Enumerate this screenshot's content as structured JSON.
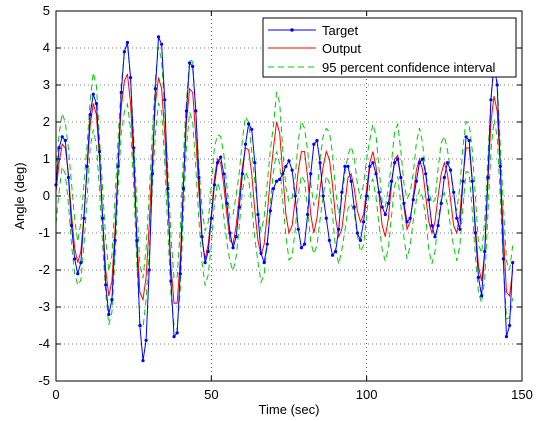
{
  "chart_data": {
    "type": "line",
    "title": "",
    "xlabel": "Time (sec)",
    "ylabel": "Angle (deg)",
    "xlim": [
      0,
      150
    ],
    "ylim": [
      -5,
      5
    ],
    "xticks": [
      0,
      50,
      100,
      150
    ],
    "yticks": [
      -5,
      -4,
      -3,
      -2,
      -1,
      0,
      1,
      2,
      3,
      4,
      5
    ],
    "grid": true,
    "legend_position": "top-right",
    "series": [
      {
        "name": "Target",
        "color": "#0000ff",
        "style": "solid-with-dots",
        "points": [
          [
            0,
            0.3
          ],
          [
            1,
            1.3
          ],
          [
            2,
            1.6
          ],
          [
            3,
            1.5
          ],
          [
            4,
            0.5
          ],
          [
            5,
            -0.8
          ],
          [
            6,
            -1.7
          ],
          [
            7,
            -2.1
          ],
          [
            8,
            -1.8
          ],
          [
            9,
            -0.6
          ],
          [
            10,
            0.8
          ],
          [
            11,
            2.2
          ],
          [
            12,
            2.75
          ],
          [
            13,
            2.5
          ],
          [
            14,
            1.2
          ],
          [
            15,
            -0.6
          ],
          [
            16,
            -2.4
          ],
          [
            17,
            -3.2
          ],
          [
            18,
            -2.8
          ],
          [
            19,
            -1.2
          ],
          [
            20,
            0.8
          ],
          [
            21,
            2.8
          ],
          [
            22,
            3.9
          ],
          [
            23,
            4.15
          ],
          [
            24,
            3.2
          ],
          [
            25,
            1.3
          ],
          [
            26,
            -1.2
          ],
          [
            27,
            -3.5
          ],
          [
            28,
            -4.45
          ],
          [
            29,
            -3.9
          ],
          [
            30,
            -2.0
          ],
          [
            31,
            0.6
          ],
          [
            32,
            2.9
          ],
          [
            33,
            4.3
          ],
          [
            34,
            4.1
          ],
          [
            35,
            2.6
          ],
          [
            36,
            0.2
          ],
          [
            37,
            -2.3
          ],
          [
            38,
            -3.8
          ],
          [
            39,
            -3.7
          ],
          [
            40,
            -2.1
          ],
          [
            41,
            0.2
          ],
          [
            42,
            2.3
          ],
          [
            43,
            3.6
          ],
          [
            44,
            3.5
          ],
          [
            45,
            2.3
          ],
          [
            46,
            0.5
          ],
          [
            47,
            -1.1
          ],
          [
            48,
            -1.8
          ],
          [
            49,
            -1.5
          ],
          [
            50,
            -0.6
          ],
          [
            51,
            0.3
          ],
          [
            52,
            0.9
          ],
          [
            53,
            1.05
          ],
          [
            54,
            0.6
          ],
          [
            55,
            -0.2
          ],
          [
            56,
            -1.0
          ],
          [
            57,
            -1.4
          ],
          [
            58,
            -1.1
          ],
          [
            59,
            -0.3
          ],
          [
            60,
            0.6
          ],
          [
            61,
            1.4
          ],
          [
            62,
            1.95
          ],
          [
            63,
            1.8
          ],
          [
            64,
            0.9
          ],
          [
            65,
            -0.5
          ],
          [
            66,
            -1.55
          ],
          [
            67,
            -1.8
          ],
          [
            68,
            -1.3
          ],
          [
            69,
            -0.4
          ],
          [
            70,
            0.2
          ],
          [
            71,
            0.4
          ],
          [
            72,
            0.45
          ],
          [
            73,
            0.6
          ],
          [
            74,
            0.8
          ],
          [
            75,
            0.95
          ],
          [
            76,
            0.7
          ],
          [
            77,
            0.0
          ],
          [
            78,
            -0.9
          ],
          [
            79,
            -1.4
          ],
          [
            80,
            -1.3
          ],
          [
            81,
            -0.5
          ],
          [
            82,
            0.6
          ],
          [
            83,
            1.4
          ],
          [
            84,
            1.5
          ],
          [
            85,
            0.9
          ],
          [
            86,
            0.0
          ],
          [
            87,
            -0.6
          ],
          [
            88,
            -1.2
          ],
          [
            89,
            -1.6
          ],
          [
            90,
            -1.5
          ],
          [
            91,
            -0.9
          ],
          [
            92,
            0.1
          ],
          [
            93,
            0.8
          ],
          [
            94,
            0.8
          ],
          [
            95,
            0.4
          ],
          [
            96,
            -0.3
          ],
          [
            97,
            -1.0
          ],
          [
            98,
            -1.2
          ],
          [
            99,
            -0.7
          ],
          [
            100,
            0.0
          ],
          [
            101,
            0.8
          ],
          [
            102,
            0.9
          ],
          [
            103,
            0.6
          ],
          [
            104,
            0.1
          ],
          [
            105,
            -0.3
          ],
          [
            106,
            -0.5
          ],
          [
            107,
            -0.2
          ],
          [
            108,
            0.4
          ],
          [
            109,
            0.9
          ],
          [
            110,
            1.0
          ],
          [
            111,
            0.5
          ],
          [
            112,
            -0.2
          ],
          [
            113,
            -0.7
          ],
          [
            114,
            -0.6
          ],
          [
            115,
            -0.1
          ],
          [
            116,
            0.4
          ],
          [
            117,
            0.9
          ],
          [
            118,
            1.0
          ],
          [
            119,
            0.6
          ],
          [
            120,
            -0.1
          ],
          [
            121,
            -0.8
          ],
          [
            122,
            -1.1
          ],
          [
            123,
            -0.8
          ],
          [
            124,
            -0.2
          ],
          [
            125,
            0.5
          ],
          [
            126,
            0.9
          ],
          [
            127,
            0.7
          ],
          [
            128,
            0.1
          ],
          [
            129,
            -0.6
          ],
          [
            130,
            -0.9
          ],
          [
            131,
            0.4
          ],
          [
            132,
            1.6
          ],
          [
            133,
            1.5
          ],
          [
            134,
            0.4
          ],
          [
            135,
            -1.0
          ],
          [
            136,
            -2.2
          ],
          [
            137,
            -2.7
          ],
          [
            138,
            -1.5
          ],
          [
            139,
            0.5
          ],
          [
            140,
            2.6
          ],
          [
            141,
            3.6
          ],
          [
            142,
            3.0
          ],
          [
            143,
            0.8
          ],
          [
            144,
            -1.7
          ],
          [
            145,
            -3.8
          ],
          [
            146,
            -3.5
          ],
          [
            147,
            -1.8
          ]
        ]
      },
      {
        "name": "Output",
        "color": "#ff0000",
        "style": "solid",
        "points": [
          [
            0,
            0.1
          ],
          [
            1,
            0.9
          ],
          [
            2,
            1.4
          ],
          [
            3,
            1.3
          ],
          [
            4,
            0.6
          ],
          [
            5,
            -0.5
          ],
          [
            6,
            -1.4
          ],
          [
            7,
            -1.8
          ],
          [
            8,
            -1.5
          ],
          [
            9,
            -0.5
          ],
          [
            10,
            0.7
          ],
          [
            11,
            1.9
          ],
          [
            12,
            2.5
          ],
          [
            13,
            2.2
          ],
          [
            14,
            1.0
          ],
          [
            15,
            -0.6
          ],
          [
            16,
            -2.0
          ],
          [
            17,
            -2.7
          ],
          [
            18,
            -2.3
          ],
          [
            19,
            -0.9
          ],
          [
            20,
            0.8
          ],
          [
            21,
            2.4
          ],
          [
            22,
            3.1
          ],
          [
            23,
            3.3
          ],
          [
            24,
            2.5
          ],
          [
            25,
            0.9
          ],
          [
            26,
            -1.0
          ],
          [
            27,
            -2.6
          ],
          [
            28,
            -2.8
          ],
          [
            29,
            -2.2
          ],
          [
            30,
            -0.8
          ],
          [
            31,
            1.0
          ],
          [
            32,
            2.5
          ],
          [
            33,
            3.2
          ],
          [
            34,
            2.9
          ],
          [
            35,
            1.7
          ],
          [
            36,
            -0.1
          ],
          [
            37,
            -1.9
          ],
          [
            38,
            -2.9
          ],
          [
            39,
            -2.9
          ],
          [
            40,
            -1.7
          ],
          [
            41,
            0.3
          ],
          [
            42,
            2.0
          ],
          [
            43,
            2.9
          ],
          [
            44,
            2.8
          ],
          [
            45,
            1.6
          ],
          [
            46,
            0.1
          ],
          [
            47,
            -1.2
          ],
          [
            48,
            -1.7
          ],
          [
            49,
            -1.3
          ],
          [
            50,
            -0.5
          ],
          [
            51,
            0.5
          ],
          [
            52,
            1.0
          ],
          [
            53,
            0.9
          ],
          [
            54,
            0.3
          ],
          [
            55,
            -0.5
          ],
          [
            56,
            -1.2
          ],
          [
            57,
            -1.3
          ],
          [
            58,
            -0.8
          ],
          [
            59,
            0.0
          ],
          [
            60,
            0.8
          ],
          [
            61,
            1.3
          ],
          [
            62,
            1.25
          ],
          [
            63,
            0.6
          ],
          [
            64,
            -0.4
          ],
          [
            65,
            -1.2
          ],
          [
            66,
            -1.6
          ],
          [
            67,
            -1.3
          ],
          [
            68,
            -0.5
          ],
          [
            69,
            0.5
          ],
          [
            70,
            1.3
          ],
          [
            71,
            2.0
          ],
          [
            72,
            1.7
          ],
          [
            73,
            0.6
          ],
          [
            74,
            -0.5
          ],
          [
            75,
            -1.0
          ],
          [
            76,
            -0.8
          ],
          [
            77,
            -0.1
          ],
          [
            78,
            0.7
          ],
          [
            79,
            1.2
          ],
          [
            80,
            1.2
          ],
          [
            81,
            0.5
          ],
          [
            82,
            -0.5
          ],
          [
            83,
            -1.0
          ],
          [
            84,
            -0.6
          ],
          [
            85,
            0.2
          ],
          [
            86,
            0.8
          ],
          [
            87,
            1.2
          ],
          [
            88,
            1.0
          ],
          [
            89,
            0.3
          ],
          [
            90,
            -0.6
          ],
          [
            91,
            -1.1
          ],
          [
            92,
            -0.9
          ],
          [
            93,
            -0.2
          ],
          [
            94,
            0.5
          ],
          [
            95,
            0.6
          ],
          [
            96,
            0.2
          ],
          [
            97,
            -0.4
          ],
          [
            98,
            -0.7
          ],
          [
            99,
            -0.5
          ],
          [
            100,
            0.2
          ],
          [
            101,
            0.9
          ],
          [
            102,
            1.2
          ],
          [
            103,
            0.8
          ],
          [
            104,
            0.0
          ],
          [
            105,
            -0.8
          ],
          [
            106,
            -1.1
          ],
          [
            107,
            -0.6
          ],
          [
            108,
            0.3
          ],
          [
            109,
            1.0
          ],
          [
            110,
            1.1
          ],
          [
            111,
            0.5
          ],
          [
            112,
            -0.3
          ],
          [
            113,
            -0.9
          ],
          [
            114,
            -0.7
          ],
          [
            115,
            0.0
          ],
          [
            116,
            0.7
          ],
          [
            117,
            1.0
          ],
          [
            118,
            0.7
          ],
          [
            119,
            0.0
          ],
          [
            120,
            -0.7
          ],
          [
            121,
            -1.0
          ],
          [
            122,
            -0.7
          ],
          [
            123,
            0.0
          ],
          [
            124,
            0.6
          ],
          [
            125,
            0.9
          ],
          [
            126,
            0.6
          ],
          [
            127,
            -0.1
          ],
          [
            128,
            -0.8
          ],
          [
            129,
            -1.0
          ],
          [
            130,
            -0.5
          ],
          [
            131,
            0.5
          ],
          [
            132,
            1.3
          ],
          [
            133,
            1.3
          ],
          [
            134,
            0.4
          ],
          [
            135,
            -0.8
          ],
          [
            136,
            -1.9
          ],
          [
            137,
            -2.3
          ],
          [
            138,
            -1.5
          ],
          [
            139,
            0.3
          ],
          [
            140,
            2.0
          ],
          [
            141,
            2.7
          ],
          [
            142,
            2.3
          ],
          [
            143,
            0.8
          ],
          [
            144,
            -1.0
          ],
          [
            145,
            -2.6
          ],
          [
            146,
            -2.7
          ],
          [
            147,
            -2.0
          ]
        ]
      }
    ],
    "confidence_band": {
      "name": "95 percent confidence interval",
      "color": "#00cc00",
      "style": "dashed",
      "half_width": 0.7
    }
  }
}
